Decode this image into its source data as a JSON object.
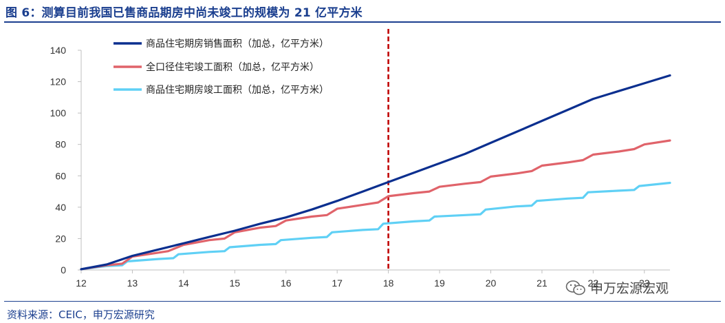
{
  "figure": {
    "title": "图 6：测算目前我国已售商品期房中尚未竣工的规模为 21 亿平方米",
    "source": "资料来源：CEIC，申万宏源研究",
    "watermark": "申万宏源宏观",
    "watermark_icon": "wechat-icon"
  },
  "colors": {
    "sales": "#0b2f8f",
    "completion_all": "#e0636a",
    "completion_presale": "#5fd0f5",
    "marker": "#c00000",
    "axis": "#bfbfbf",
    "title": "#1b3f8f"
  },
  "chart_data": {
    "type": "line",
    "xlim": [
      12,
      23.5
    ],
    "ylim": [
      0,
      140
    ],
    "x_ticks": [
      12,
      13,
      14,
      15,
      16,
      17,
      18,
      19,
      20,
      21,
      22,
      23
    ],
    "y_ticks": [
      0,
      20,
      40,
      60,
      80,
      100,
      120,
      140
    ],
    "grid": false,
    "legend_position": "top-left",
    "vertical_marker_x": 18,
    "series": [
      {
        "name": "商品住宅期房销售面积（加总，亿平方米）",
        "x": [
          12,
          12.5,
          13,
          13.5,
          14,
          14.5,
          15,
          15.5,
          16,
          16.5,
          17,
          17.5,
          18,
          18.5,
          19,
          19.5,
          20,
          20.5,
          21,
          21.5,
          22,
          22.5,
          23,
          23.5
        ],
        "values": [
          0.5,
          3.5,
          9,
          13,
          17,
          21,
          25,
          29.5,
          33.5,
          38.5,
          44,
          50,
          56,
          62,
          68,
          74,
          81,
          88,
          95,
          102,
          109,
          114,
          119,
          124
        ]
      },
      {
        "name": "全口径住宅竣工面积（加总，亿平方米）",
        "x": [
          12,
          12.5,
          12.8,
          13,
          13.5,
          13.7,
          14,
          14.5,
          14.8,
          15,
          15.5,
          15.8,
          16,
          16.5,
          16.8,
          17,
          17.5,
          17.8,
          18,
          18.5,
          18.8,
          19,
          19.5,
          19.8,
          20,
          20.5,
          20.8,
          21,
          21.5,
          21.8,
          22,
          22.5,
          22.8,
          23,
          23.5
        ],
        "values": [
          0.5,
          3,
          4,
          8.5,
          11,
          12,
          16,
          19,
          20,
          24,
          27,
          28,
          31.5,
          34,
          35,
          39,
          41.5,
          43,
          47,
          49,
          50,
          53,
          55,
          56,
          59.5,
          61.5,
          63,
          66.5,
          68.5,
          70,
          73.5,
          75.5,
          77,
          80,
          82.5
        ]
      },
      {
        "name": "商品住宅期房竣工面积（加总，亿平方米）",
        "x": [
          12,
          12.5,
          12.8,
          12.9,
          13.5,
          13.8,
          13.9,
          14.5,
          14.8,
          14.9,
          15.5,
          15.8,
          15.9,
          16.5,
          16.8,
          16.9,
          17.5,
          17.8,
          17.9,
          18.5,
          18.8,
          18.9,
          19.5,
          19.8,
          19.9,
          20.5,
          20.8,
          20.9,
          21.5,
          21.8,
          21.9,
          22.5,
          22.8,
          22.9,
          23.5
        ],
        "values": [
          0.5,
          2.5,
          3,
          5.5,
          7,
          7.5,
          10,
          11.5,
          12,
          14.5,
          16,
          16.5,
          19,
          20.5,
          21,
          24,
          25.5,
          26,
          29.5,
          31,
          31.5,
          34,
          35,
          35.5,
          38.5,
          40.5,
          41,
          44,
          45.5,
          46,
          49.5,
          50.5,
          51,
          53.5,
          55.5
        ]
      }
    ]
  }
}
